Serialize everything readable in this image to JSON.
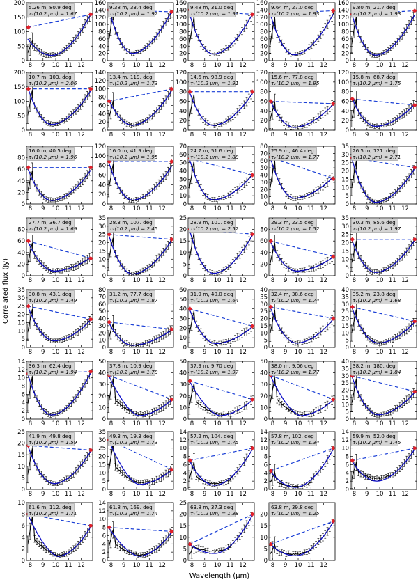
{
  "figure": {
    "xlabel": "Wavelength (μm)",
    "ylabel": "Correlated flux (Jy)",
    "xticks": [
      "8",
      "9",
      "10",
      "11",
      "12"
    ],
    "colors": {
      "data": "#000000",
      "model": "#1010c8",
      "dashed": "#1a3fd6",
      "marker": "#e0202a",
      "label_bg": "#d4d4d4"
    }
  },
  "chart_data": [
    {
      "type": "line",
      "label": "5.26 m, 80.9 deg",
      "tau": "τᵥ(10.2 μm) = 1.67",
      "ylim": [
        0,
        200
      ],
      "yticks": [
        0,
        50,
        100,
        150,
        200
      ],
      "start": 75,
      "min": 18,
      "end": 165,
      "dash": [
        115,
        160
      ],
      "shape": "a"
    },
    {
      "type": "line",
      "label": "9.38 m, 33.4 deg",
      "tau": "τᵥ(10.2 μm) = 1.92",
      "ylim": [
        0,
        160
      ],
      "yticks": [
        0,
        20,
        40,
        60,
        80,
        100,
        120,
        140,
        160
      ],
      "start": 145,
      "min": 20,
      "end": 140,
      "dash": [
        140,
        135
      ],
      "shape": "a"
    },
    {
      "type": "line",
      "label": "9.48 m, 31.0 deg",
      "tau": "τᵥ(10.2 μm) = 1.91",
      "ylim": [
        0,
        160
      ],
      "yticks": [
        0,
        20,
        40,
        60,
        80,
        100,
        120,
        140,
        160
      ],
      "start": 130,
      "min": 18,
      "end": 132,
      "dash": [
        140,
        128
      ],
      "shape": "a"
    },
    {
      "type": "line",
      "label": "9.64 m, 27.0 deg",
      "tau": "τᵥ(10.2 μm) = 1.93",
      "ylim": [
        0,
        160
      ],
      "yticks": [
        0,
        20,
        40,
        60,
        80,
        100,
        120,
        140,
        160
      ],
      "start": 130,
      "min": 16,
      "end": 132,
      "dash": [
        130,
        138
      ],
      "shape": "a"
    },
    {
      "type": "line",
      "label": "9.80 m, 21.7 deg",
      "tau": "τᵥ(10.2 μm) = 1.93",
      "ylim": [
        0,
        160
      ],
      "yticks": [
        0,
        20,
        40,
        60,
        80,
        100,
        120,
        140,
        160
      ],
      "start": 130,
      "min": 15,
      "end": 130,
      "dash": [
        128,
        138
      ],
      "shape": "a"
    },
    {
      "type": "line",
      "label": "10.7 m, 103. deg",
      "tau": "τᵥ(10.2 μm) = 2.06",
      "ylim": [
        0,
        200
      ],
      "yticks": [
        0,
        50,
        100,
        150,
        200
      ],
      "start": 148,
      "min": 20,
      "end": 140,
      "dash": [
        143,
        143
      ],
      "shape": "a"
    },
    {
      "type": "line",
      "label": "13.4 m, 119. deg",
      "tau": "τᵥ(10.2 μm) = 1.73",
      "ylim": [
        0,
        140
      ],
      "yticks": [
        0,
        20,
        40,
        60,
        80,
        100,
        120,
        140
      ],
      "start": 75,
      "min": 12,
      "end": 98,
      "dash": [
        70,
        100
      ],
      "shape": "a"
    },
    {
      "type": "line",
      "label": "14.6 m, 98.9 deg",
      "tau": "τᵥ(10.2 μm) = 1.91",
      "ylim": [
        0,
        120
      ],
      "yticks": [
        0,
        20,
        40,
        60,
        80,
        100,
        120
      ],
      "start": 80,
      "min": 10,
      "end": 78,
      "dash": [
        80,
        80
      ],
      "shape": "a"
    },
    {
      "type": "line",
      "label": "15.6 m, 77.8 deg",
      "tau": "τᵥ(10.2 μm) = 1.95",
      "ylim": [
        0,
        120
      ],
      "yticks": [
        0,
        20,
        40,
        60,
        80,
        100,
        120
      ],
      "start": 62,
      "min": 6,
      "end": 55,
      "dash": [
        60,
        55
      ],
      "shape": "a"
    },
    {
      "type": "line",
      "label": "15.8 m, 68.7 deg",
      "tau": "τᵥ(10.2 μm) = 1.75",
      "ylim": [
        0,
        120
      ],
      "yticks": [
        0,
        20,
        40,
        60,
        80,
        100,
        120
      ],
      "start": 68,
      "min": 8,
      "end": 55,
      "dash": [
        65,
        52
      ],
      "shape": "a"
    },
    {
      "type": "line",
      "label": "16.0 m, 40.5 deg",
      "tau": "τᵥ(10.2 μm) = 1.96",
      "ylim": [
        0,
        100
      ],
      "yticks": [
        0,
        20,
        40,
        60,
        80
      ],
      "start": 62,
      "min": 6,
      "end": 60,
      "dash": [
        63,
        63
      ],
      "shape": "a"
    },
    {
      "type": "line",
      "label": "16.0 m, 41.9 deg",
      "tau": "τᵥ(10.2 μm) = 1.95",
      "ylim": [
        0,
        120
      ],
      "yticks": [
        0,
        20,
        40,
        60,
        80,
        100,
        120
      ],
      "start": 88,
      "min": 8,
      "end": 80,
      "dash": [
        88,
        88
      ],
      "shape": "a"
    },
    {
      "type": "line",
      "label": "24.7 m, 51.6 deg",
      "tau": "τᵥ(10.2 μm) = 1.88",
      "ylim": [
        0,
        70
      ],
      "yticks": [
        0,
        10,
        20,
        30,
        40,
        50,
        60,
        70
      ],
      "start": 55,
      "min": 5,
      "end": 36,
      "dash": [
        55,
        35
      ],
      "shape": "a"
    },
    {
      "type": "line",
      "label": "25.9 m, 46.4 deg",
      "tau": "τᵥ(10.2 μm) = 1.77",
      "ylim": [
        0,
        80
      ],
      "yticks": [
        0,
        10,
        20,
        30,
        40,
        50,
        60,
        70,
        80
      ],
      "start": 65,
      "min": 8,
      "end": 38,
      "dash": [
        65,
        35
      ],
      "shape": "a"
    },
    {
      "type": "line",
      "label": "26.5 m, 121. deg",
      "tau": "τᵥ(10.2 μm) = 2.71",
      "ylim": [
        0,
        35
      ],
      "yticks": [
        0,
        5,
        10,
        15,
        20,
        25,
        30,
        35
      ],
      "start": 28,
      "min": 1,
      "end": 22,
      "dash": [
        28,
        22
      ],
      "shape": "a"
    },
    {
      "type": "line",
      "label": "27.7 m, 36.7 deg",
      "tau": "τᵥ(10.2 μm) = 1.69",
      "ylim": [
        0,
        100
      ],
      "yticks": [
        0,
        20,
        40,
        60,
        80
      ],
      "start": 60,
      "min": 8,
      "end": 32,
      "dash": [
        60,
        30
      ],
      "shape": "b"
    },
    {
      "type": "line",
      "label": "28.3 m, 107. deg",
      "tau": "τᵥ(10.2 μm) = 2.45",
      "ylim": [
        0,
        35
      ],
      "yticks": [
        0,
        5,
        10,
        15,
        20,
        25,
        30,
        35
      ],
      "start": 25,
      "min": 1,
      "end": 22,
      "dash": [
        25,
        22
      ],
      "shape": "a"
    },
    {
      "type": "line",
      "label": "28.9 m, 101. deg",
      "tau": "τᵥ(10.2 μm) = 2.52",
      "ylim": [
        0,
        25
      ],
      "yticks": [
        0,
        5,
        10,
        15,
        20,
        25
      ],
      "start": 20,
      "min": 1,
      "end": 18,
      "dash": [
        20,
        18
      ],
      "shape": "a"
    },
    {
      "type": "line",
      "label": "29.3 m, 23.5 deg",
      "tau": "τᵥ(10.2 μm) = 1.52",
      "ylim": [
        0,
        100
      ],
      "yticks": [
        0,
        20,
        40,
        60,
        80
      ],
      "start": 60,
      "min": 8,
      "end": 33,
      "dash": [
        60,
        33
      ],
      "shape": "b"
    },
    {
      "type": "line",
      "label": "30.3 m, 85.6 deg",
      "tau": "τᵥ(10.2 μm) = 1.97",
      "ylim": [
        0,
        35
      ],
      "yticks": [
        0,
        5,
        10,
        15,
        20,
        25,
        30,
        35
      ],
      "start": 22,
      "min": 2,
      "end": 22,
      "dash": [
        22,
        22
      ],
      "shape": "a"
    },
    {
      "type": "line",
      "label": "30.8 m, 43.1 deg",
      "tau": "τᵥ(10.2 μm) = 1.49",
      "ylim": [
        0,
        35
      ],
      "yticks": [
        0,
        5,
        10,
        15,
        20,
        25,
        30,
        35
      ],
      "start": 25,
      "min": 4,
      "end": 17,
      "dash": [
        25,
        17
      ],
      "shape": "b"
    },
    {
      "type": "line",
      "label": "31.2 m, 77.7 deg",
      "tau": "τᵥ(10.2 μm) = 1.87",
      "ylim": [
        0,
        80
      ],
      "yticks": [
        0,
        10,
        20,
        30,
        40,
        50,
        60,
        70,
        80
      ],
      "start": 35,
      "min": 3,
      "end": 25,
      "dash": [
        35,
        25
      ],
      "shape": "a"
    },
    {
      "type": "line",
      "label": "31.9 m, 40.0 deg",
      "tau": "τᵥ(10.2 μm) = 1.64",
      "ylim": [
        0,
        60
      ],
      "yticks": [
        0,
        10,
        20,
        30,
        40,
        50,
        60
      ],
      "start": 40,
      "min": 4,
      "end": 22,
      "dash": [
        40,
        22
      ],
      "shape": "b"
    },
    {
      "type": "line",
      "label": "32.4 m, 38.6 deg",
      "tau": "τᵥ(10.2 μm) = 1.74",
      "ylim": [
        0,
        40
      ],
      "yticks": [
        0,
        5,
        10,
        15,
        20,
        25,
        30,
        35,
        40
      ],
      "start": 28,
      "min": 3,
      "end": 20,
      "dash": [
        28,
        20
      ],
      "shape": "b"
    },
    {
      "type": "line",
      "label": "35.2 m, 23.8 deg",
      "tau": "τᵥ(10.2 μm) = 1.68",
      "ylim": [
        0,
        40
      ],
      "yticks": [
        0,
        5,
        10,
        15,
        20,
        25,
        30,
        35,
        40
      ],
      "start": 28,
      "min": 3,
      "end": 18,
      "dash": [
        28,
        18
      ],
      "shape": "b"
    },
    {
      "type": "line",
      "label": "36.3 m, 62.4 deg",
      "tau": "τᵥ(10.2 μm) = 1.94",
      "ylim": [
        0,
        14
      ],
      "yticks": [
        0,
        2,
        4,
        6,
        8,
        10,
        12,
        14
      ],
      "start": 11,
      "min": 1,
      "end": 11.5,
      "dash": [
        11,
        11.5
      ],
      "shape": "a"
    },
    {
      "type": "line",
      "label": "37.8 m, 10.9 deg",
      "tau": "τᵥ(10.2 μm) = 1.78",
      "ylim": [
        0,
        50
      ],
      "yticks": [
        0,
        10,
        20,
        30,
        40,
        50
      ],
      "start": 38,
      "min": 3,
      "end": 17,
      "dash": [
        38,
        17
      ],
      "shape": "c"
    },
    {
      "type": "line",
      "label": "37.9 m, 9.70 deg",
      "tau": "τᵥ(10.2 μm) = 1.97",
      "ylim": [
        0,
        50
      ],
      "yticks": [
        0,
        10,
        20,
        30,
        40,
        50
      ],
      "start": 33,
      "min": 3,
      "end": 17,
      "dash": [
        33,
        17
      ],
      "shape": "c"
    },
    {
      "type": "line",
      "label": "38.0 m, 9.06 deg",
      "tau": "τᵥ(10.2 μm) = 1.77",
      "ylim": [
        0,
        50
      ],
      "yticks": [
        0,
        10,
        20,
        30,
        40,
        50
      ],
      "start": 38,
      "min": 3,
      "end": 17,
      "dash": [
        38,
        17
      ],
      "shape": "c"
    },
    {
      "type": "line",
      "label": "38.2 m, 180. deg",
      "tau": "τᵥ(10.2 μm) = 1.84",
      "ylim": [
        0,
        40
      ],
      "yticks": [
        0,
        5,
        10,
        15,
        20,
        25,
        30,
        35,
        40
      ],
      "start": 30,
      "min": 3,
      "end": 19,
      "dash": [
        30,
        19
      ],
      "shape": "b"
    },
    {
      "type": "line",
      "label": "41.9 m, 49.8 deg",
      "tau": "τᵥ(10.2 μm) = 1.59",
      "ylim": [
        0,
        25
      ],
      "yticks": [
        0,
        5,
        10,
        15,
        20,
        25
      ],
      "start": 19,
      "min": 2.5,
      "end": 17,
      "dash": [
        19,
        17
      ],
      "shape": "b"
    },
    {
      "type": "line",
      "label": "49.3 m, 19.3 deg",
      "tau": "τᵥ(10.2 μm) = 1.73",
      "ylim": [
        0,
        35
      ],
      "yticks": [
        0,
        5,
        10,
        15,
        20,
        25,
        30,
        35
      ],
      "start": 30,
      "min": 3,
      "end": 12,
      "dash": [
        30,
        12
      ],
      "shape": "c"
    },
    {
      "type": "line",
      "label": "57.2 m, 104. deg",
      "tau": "τᵥ(10.2 μm) = 1.75",
      "ylim": [
        0,
        14
      ],
      "yticks": [
        0,
        2,
        4,
        6,
        8,
        10,
        12,
        14
      ],
      "start": 7,
      "min": 1,
      "end": 10,
      "dash": [
        7,
        10
      ],
      "shape": "d"
    },
    {
      "type": "line",
      "label": "57.8 m, 102. deg",
      "tau": "τᵥ(10.2 μm) = 1.34",
      "ylim": [
        0,
        14
      ],
      "yticks": [
        0,
        2,
        4,
        6,
        8,
        10,
        12,
        14
      ],
      "start": 4.5,
      "min": 0.5,
      "end": 10,
      "dash": [
        4.5,
        10
      ],
      "shape": "d"
    },
    {
      "type": "line",
      "label": "59.9 m, 52.0 deg",
      "tau": "τᵥ(10.2 μm) = 1.45",
      "ylim": [
        0,
        14
      ],
      "yticks": [
        0,
        2,
        4,
        6,
        8,
        10,
        12,
        14
      ],
      "start": 7,
      "min": 2,
      "end": 10,
      "dash": [
        7,
        10
      ],
      "shape": "d"
    },
    {
      "type": "line",
      "label": "61.6 m, 112. deg",
      "tau": "τᵥ(10.2 μm) = 1.71",
      "ylim": [
        0,
        10
      ],
      "yticks": [
        0,
        2,
        4,
        6,
        8,
        10
      ],
      "start": 8,
      "min": 0.7,
      "end": 6,
      "dash": [
        8,
        6
      ],
      "shape": "c"
    },
    {
      "type": "line",
      "label": "61.8 m, 169. deg",
      "tau": "τᵥ(10.2 μm) = 1.74",
      "ylim": [
        0,
        14
      ],
      "yticks": [
        0,
        2,
        4,
        6,
        8,
        10,
        12,
        14
      ],
      "start": 8,
      "min": 1,
      "end": 7,
      "dash": [
        8,
        7
      ],
      "shape": "c"
    },
    {
      "type": "line",
      "label": "63.8 m, 37.3 deg",
      "tau": "τᵥ(10.2 μm) = 1.38",
      "ylim": [
        0,
        25
      ],
      "yticks": [
        0,
        5,
        10,
        15,
        20,
        25
      ],
      "start": 7,
      "min": 3,
      "end": 20,
      "dash": [
        7,
        20
      ],
      "shape": "d"
    },
    {
      "type": "line",
      "label": "63.8 m, 39.8 deg",
      "tau": "τᵥ(10.2 μm) = 1.25",
      "ylim": [
        0,
        25
      ],
      "yticks": [
        0,
        5,
        10,
        15,
        20
      ],
      "start": 7,
      "min": 2,
      "end": 17,
      "dash": [
        7,
        17
      ],
      "shape": "d"
    }
  ]
}
